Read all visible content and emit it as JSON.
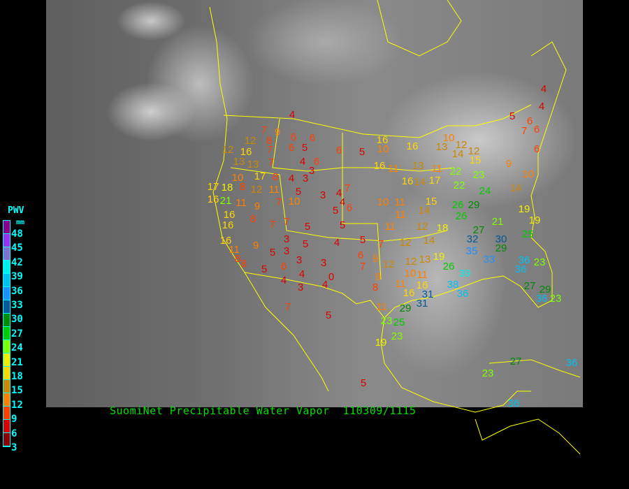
{
  "title": "SuomiNet Precipitable Water Vapor  110309/1115",
  "legend": {
    "heading": "PWV",
    "unit": "mm",
    "labels": [
      "48",
      "45",
      "42",
      "39",
      "36",
      "33",
      "30",
      "27",
      "24",
      "21",
      "18",
      "15",
      "12",
      "9",
      "6",
      "3"
    ],
    "colors": [
      "#8b008b",
      "#9a30f0",
      "#8070d0",
      "#00f0f0",
      "#00c0f0",
      "#1e90ff",
      "#005a9a",
      "#008b00",
      "#00cc00",
      "#80ff00",
      "#f0f000",
      "#ffd700",
      "#cc8800",
      "#ff8000",
      "#ff4000",
      "#dd0000",
      "#8b0000"
    ]
  },
  "colors": {
    "title": "#00e000",
    "boundaries": "#ffff00",
    "legend_text": "#00ffff"
  },
  "stations": [
    4,
    7,
    9,
    6,
    6,
    12,
    8,
    6,
    5,
    12,
    16,
    7,
    6,
    5,
    16,
    10,
    16,
    13,
    10,
    12,
    14,
    12,
    15,
    5,
    4,
    4,
    6,
    7,
    6,
    6,
    13,
    13,
    7,
    4,
    6,
    3,
    10,
    17,
    8,
    4,
    3,
    16,
    11,
    13,
    11,
    22,
    23,
    9,
    10,
    17,
    18,
    8,
    12,
    11,
    5,
    3,
    4,
    7,
    16,
    14,
    17,
    22,
    24,
    14,
    16,
    21,
    11,
    9,
    7,
    10,
    5,
    6,
    4,
    10,
    11,
    14,
    15,
    26,
    29,
    19,
    16,
    8,
    7,
    7,
    5,
    5,
    11,
    11,
    12,
    18,
    26,
    21,
    19,
    16,
    16,
    11,
    9,
    3,
    5,
    4,
    5,
    7,
    12,
    14,
    27,
    32,
    30,
    29,
    25,
    8,
    5,
    3,
    3,
    3,
    6,
    9,
    12,
    12,
    13,
    19,
    35,
    33,
    8,
    5,
    6,
    4,
    0,
    7,
    9,
    10,
    11,
    26,
    39,
    36,
    36,
    23,
    4,
    3,
    4,
    8,
    11,
    16,
    16,
    38,
    36,
    31,
    31,
    27,
    29,
    36,
    23,
    7,
    5,
    11,
    29,
    23,
    25,
    19,
    23,
    23,
    27,
    36,
    5,
    36
  ]
}
